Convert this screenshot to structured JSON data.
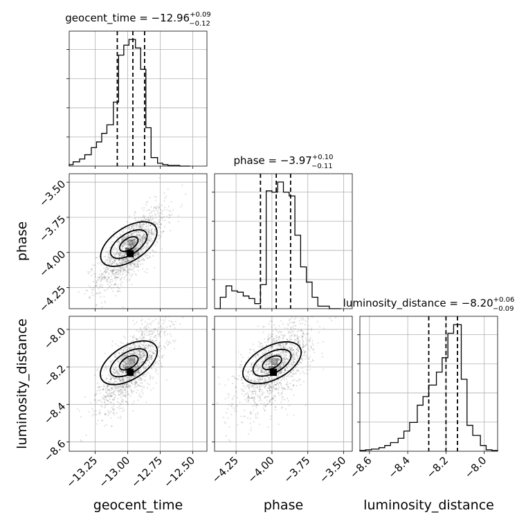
{
  "chart_data": {
    "type": "corner",
    "parameters": [
      "geocent_time",
      "phase",
      "luminosity_distance"
    ],
    "axes": {
      "geocent_time": {
        "label": "geocent_time",
        "range": [
          -13.45,
          -12.39
        ],
        "ticks": [
          -13.25,
          -13.0,
          -12.75,
          -12.5
        ],
        "tick_labels": [
          "−13.25",
          "−13.00",
          "−12.75",
          "−12.50"
        ]
      },
      "phase": {
        "label": "phase",
        "range": [
          -4.4,
          -3.44
        ],
        "ticks": [
          -4.25,
          -4.0,
          -3.75,
          -3.5
        ],
        "tick_labels": [
          "−4.25",
          "−4.00",
          "−3.75",
          "−3.50"
        ]
      },
      "luminosity_distance": {
        "label": "luminosity_distance",
        "range": [
          -8.65,
          -7.93
        ],
        "ticks": [
          -8.6,
          -8.4,
          -8.2,
          -8.0
        ],
        "tick_labels": [
          "−8.6",
          "−8.4",
          "−8.2",
          "−8.0"
        ]
      }
    },
    "marginals": [
      {
        "parameter": "geocent_time",
        "title": "geocent_time = −12.96",
        "title_sup": "+0.09",
        "title_sub": "−0.12",
        "median": -12.96,
        "q_low": -13.08,
        "q_high": -12.87,
        "bin_edges": [
          -13.45,
          -13.42,
          -13.37,
          -13.33,
          -13.28,
          -13.24,
          -13.2,
          -13.16,
          -13.11,
          -13.07,
          -13.03,
          -12.99,
          -12.94,
          -12.9,
          -12.86,
          -12.82,
          -12.77,
          -12.73,
          -12.69,
          -12.65,
          -12.6,
          -12.56,
          -12.52
        ],
        "counts": [
          0.01,
          0.03,
          0.05,
          0.08,
          0.13,
          0.17,
          0.23,
          0.29,
          0.45,
          0.78,
          0.85,
          0.89,
          0.83,
          0.68,
          0.27,
          0.06,
          0.02,
          0.01,
          0.005,
          0.005,
          0.0,
          0.0
        ]
      },
      {
        "parameter": "phase",
        "title": "phase = −3.97",
        "title_sup": "+0.10",
        "title_sub": "−0.11",
        "median": -3.97,
        "q_low": -4.08,
        "q_high": -3.87,
        "bin_edges": [
          -4.4,
          -4.36,
          -4.32,
          -4.28,
          -4.24,
          -4.2,
          -4.16,
          -4.12,
          -4.08,
          -4.04,
          -4.0,
          -3.96,
          -3.92,
          -3.88,
          -3.84,
          -3.8,
          -3.76,
          -3.72,
          -3.68,
          -3.64,
          -3.6,
          -3.56,
          -3.52
        ],
        "counts": [
          0.0,
          0.09,
          0.18,
          0.14,
          0.13,
          0.1,
          0.08,
          0.04,
          0.19,
          0.93,
          0.92,
          1.0,
          0.92,
          0.89,
          0.58,
          0.33,
          0.21,
          0.09,
          0.02,
          0.02,
          0.0,
          0.0
        ]
      },
      {
        "parameter": "luminosity_distance",
        "title": "luminosity_distance = −8.20",
        "title_sup": "+0.06",
        "title_sub": "−0.09",
        "median": -8.2,
        "q_low": -8.29,
        "q_high": -8.14,
        "bin_edges": [
          -8.65,
          -8.62,
          -8.59,
          -8.55,
          -8.52,
          -8.49,
          -8.45,
          -8.42,
          -8.39,
          -8.35,
          -8.32,
          -8.29,
          -8.25,
          -8.22,
          -8.19,
          -8.16,
          -8.12,
          -8.09,
          -8.06,
          -8.02,
          -7.99,
          -7.96,
          -7.93
        ],
        "counts": [
          0.005,
          0.01,
          0.015,
          0.025,
          0.04,
          0.06,
          0.09,
          0.14,
          0.2,
          0.32,
          0.38,
          0.46,
          0.55,
          0.65,
          0.82,
          0.88,
          0.5,
          0.18,
          0.11,
          0.04,
          0.01,
          0.005
        ]
      }
    ],
    "pairs": [
      {
        "x": "geocent_time",
        "y": "phase",
        "correlation": 0.75,
        "center": [
          -12.97,
          -3.97
        ],
        "spread": [
          0.1,
          0.11
        ]
      },
      {
        "x": "geocent_time",
        "y": "luminosity_distance",
        "correlation": 0.7,
        "center": [
          -12.97,
          -8.2
        ],
        "spread": [
          0.1,
          0.09
        ]
      },
      {
        "x": "phase",
        "y": "luminosity_distance",
        "correlation": 0.6,
        "center": [
          -3.98,
          -8.2
        ],
        "spread": [
          0.1,
          0.09
        ]
      }
    ],
    "grid": true
  }
}
